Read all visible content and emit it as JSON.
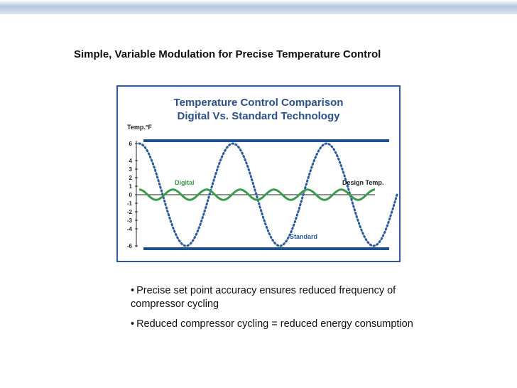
{
  "slide": {
    "title": "Simple, Variable Modulation for Precise Temperature Control",
    "bullets": [
      "Precise set point accuracy ensures reduced frequency of compressor cycling",
      "Reduced compressor cycling = reduced energy consumption"
    ]
  },
  "colors": {
    "title_blue": "#2b5187",
    "boundary_blue": "#1f4f8c",
    "standard_blue": "#2b5a9b",
    "digital_green": "#3b9a4b",
    "axis": "#222222"
  },
  "chart_data": {
    "type": "line",
    "title": "Temperature Control Comparison",
    "subtitle": "Digital Vs. Standard Technology",
    "ylabel": "Temp.°F",
    "yticks": [
      6,
      4,
      3,
      2,
      1,
      0,
      -1,
      -2,
      -3,
      -4,
      -6
    ],
    "ylim": [
      -6,
      6
    ],
    "grid": false,
    "upper_limit": 6,
    "lower_limit": -6,
    "design_temp": 0,
    "annotations": {
      "digital": "Digital",
      "standard": "Standard",
      "design": "Design Temp."
    },
    "series": [
      {
        "name": "Standard",
        "style": "dotted",
        "amplitude": 6,
        "points": [
          [
            0,
            6
          ],
          [
            1,
            -6
          ],
          [
            2,
            6
          ],
          [
            3,
            -6
          ],
          [
            4,
            6
          ],
          [
            5,
            -6
          ],
          [
            5.5,
            -1
          ]
        ]
      },
      {
        "name": "Digital",
        "style": "solid",
        "amplitude": 0.6,
        "cycles": 7
      }
    ]
  }
}
